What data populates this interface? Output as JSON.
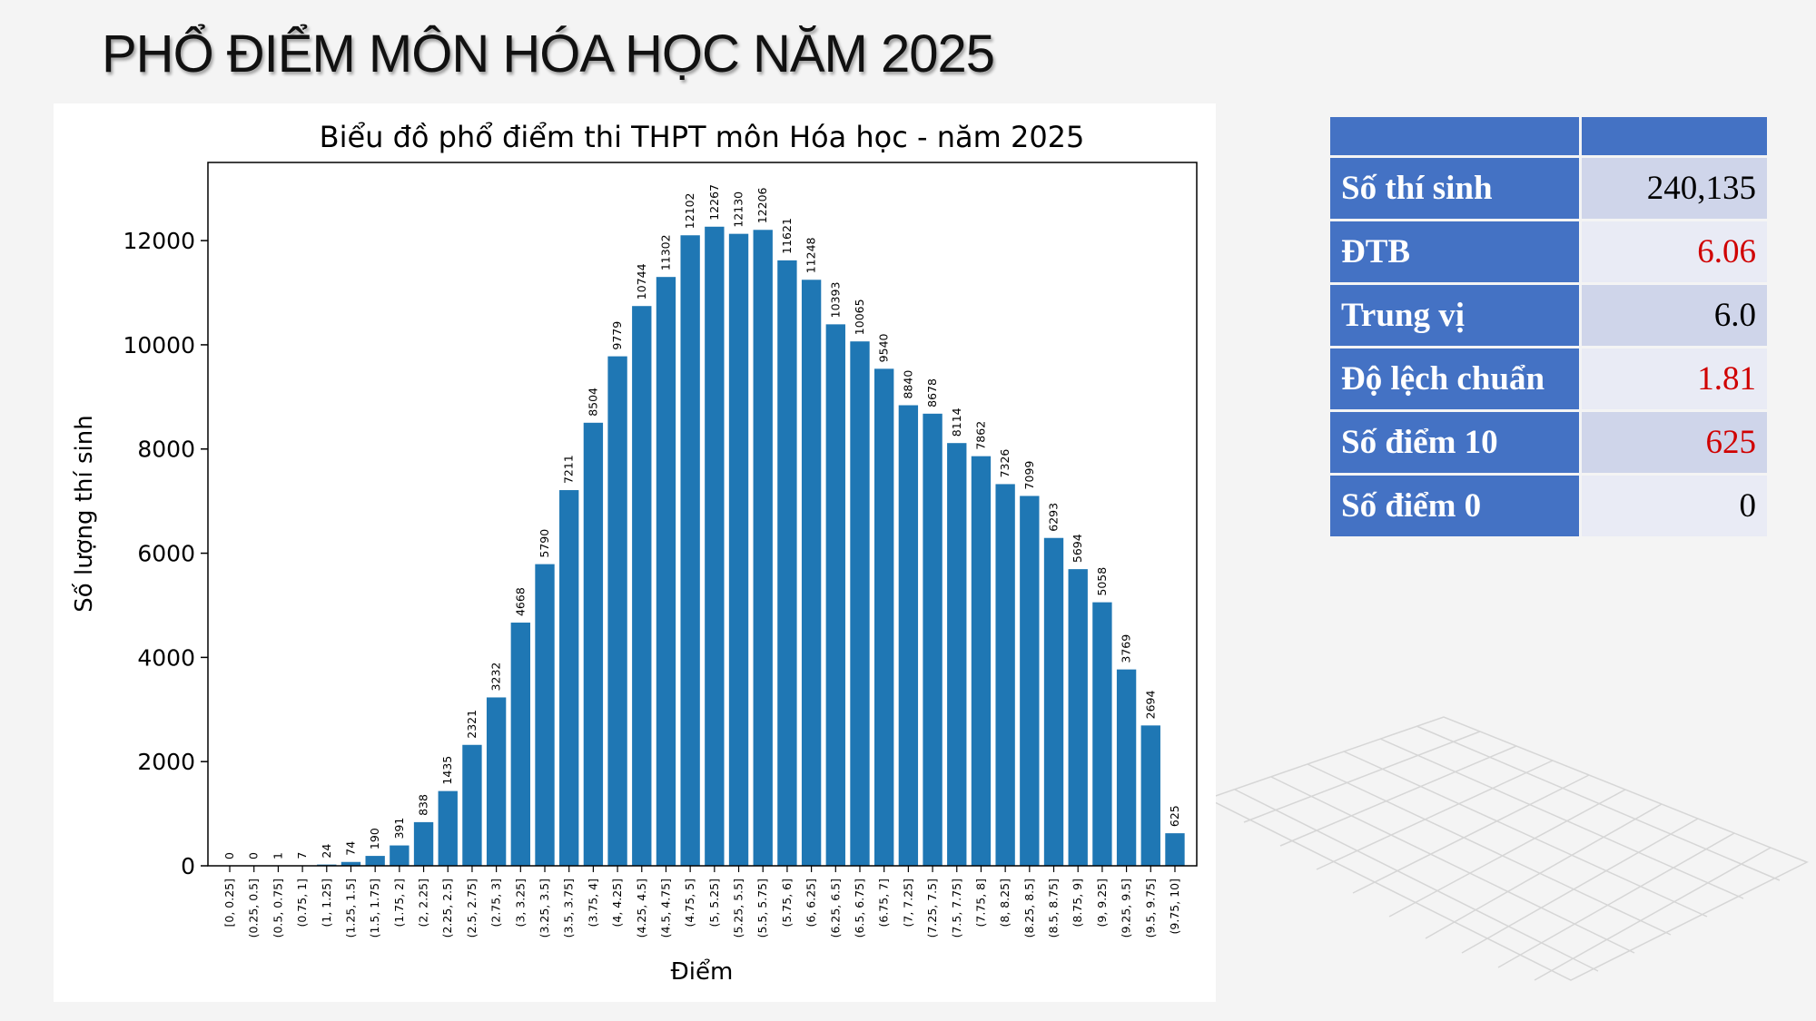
{
  "slide": {
    "title": "PHỔ ĐIỂM MÔN HÓA HỌC NĂM 2025"
  },
  "stats": {
    "header": [
      "",
      ""
    ],
    "rows": [
      {
        "label": "Số thí sinh",
        "value": "240,135",
        "color": "#000000"
      },
      {
        "label": "ĐTB",
        "value": "6.06",
        "color": "#d00000"
      },
      {
        "label": "Trung vị",
        "value": "6.0",
        "color": "#000000"
      },
      {
        "label": "Độ lệch chuẩn",
        "value": "1.81",
        "color": "#d00000"
      },
      {
        "label": "Số điểm 10",
        "value": "625",
        "color": "#d00000"
      },
      {
        "label": "Số điểm 0",
        "value": "0",
        "color": "#000000"
      }
    ],
    "label_bg": "#4472c4",
    "value_bg_odd": "#cfd5ea",
    "value_bg_even": "#e9ebf5"
  },
  "chart_data": {
    "type": "bar",
    "title": "Biểu đồ phổ điểm thi THPT môn Hóa học - năm 2025",
    "xlabel": "Điểm",
    "ylabel": "Số lượng thí sinh",
    "ylim": [
      0,
      13500
    ],
    "yticks": [
      0,
      2000,
      4000,
      6000,
      8000,
      10000,
      12000
    ],
    "bar_color": "#1f77b4",
    "categories": [
      "[0, 0.25]",
      "(0.25, 0.5]",
      "(0.5, 0.75]",
      "(0.75, 1]",
      "(1, 1.25]",
      "(1.25, 1.5]",
      "(1.5, 1.75]",
      "(1.75, 2]",
      "(2, 2.25]",
      "(2.25, 2.5]",
      "(2.5, 2.75]",
      "(2.75, 3]",
      "(3, 3.25]",
      "(3.25, 3.5]",
      "(3.5, 3.75]",
      "(3.75, 4]",
      "(4, 4.25]",
      "(4.25, 4.5]",
      "(4.5, 4.75]",
      "(4.75, 5]",
      "(5, 5.25]",
      "(5.25, 5.5]",
      "(5.5, 5.75]",
      "(5.75, 6]",
      "(6, 6.25]",
      "(6.25, 6.5]",
      "(6.5, 6.75]",
      "(6.75, 7]",
      "(7, 7.25]",
      "(7.25, 7.5]",
      "(7.5, 7.75]",
      "(7.75, 8]",
      "(8, 8.25]",
      "(8.25, 8.5]",
      "(8.5, 8.75]",
      "(8.75, 9]",
      "(9, 9.25]",
      "(9.25, 9.5]",
      "(9.5, 9.75]",
      "(9.75, 10]"
    ],
    "values": [
      0,
      0,
      1,
      7,
      24,
      74,
      190,
      391,
      838,
      1435,
      2321,
      3232,
      4668,
      5790,
      7211,
      8504,
      9779,
      10744,
      11302,
      12102,
      12267,
      12130,
      12206,
      11621,
      11248,
      10393,
      10065,
      9540,
      8840,
      8678,
      8114,
      7862,
      7326,
      7099,
      6293,
      5694,
      5058,
      3769,
      2694,
      625
    ]
  }
}
